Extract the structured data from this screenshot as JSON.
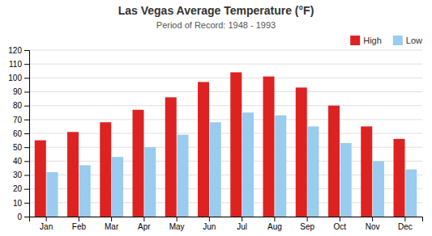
{
  "chart_data": {
    "type": "bar",
    "title": "Las Vegas Average Temperature (°F)",
    "subtitle": "Period of Record: 1948 - 1993",
    "categories": [
      "Jan",
      "Feb",
      "Mar",
      "Apr",
      "May",
      "Jun",
      "Jul",
      "Aug",
      "Sep",
      "Oct",
      "Nov",
      "Dec"
    ],
    "series": [
      {
        "name": "High",
        "color": "#dd2222",
        "values": [
          55,
          61,
          68,
          77,
          86,
          97,
          104,
          101,
          93,
          80,
          65,
          56
        ]
      },
      {
        "name": "Low",
        "color": "#99ccee",
        "values": [
          32,
          37,
          43,
          50,
          59,
          68,
          75,
          73,
          65,
          53,
          40,
          34
        ]
      }
    ],
    "ylim": [
      0,
      120
    ],
    "yticks": [
      0,
      10,
      20,
      30,
      40,
      50,
      60,
      70,
      80,
      90,
      100,
      110,
      120
    ],
    "grid": true
  }
}
